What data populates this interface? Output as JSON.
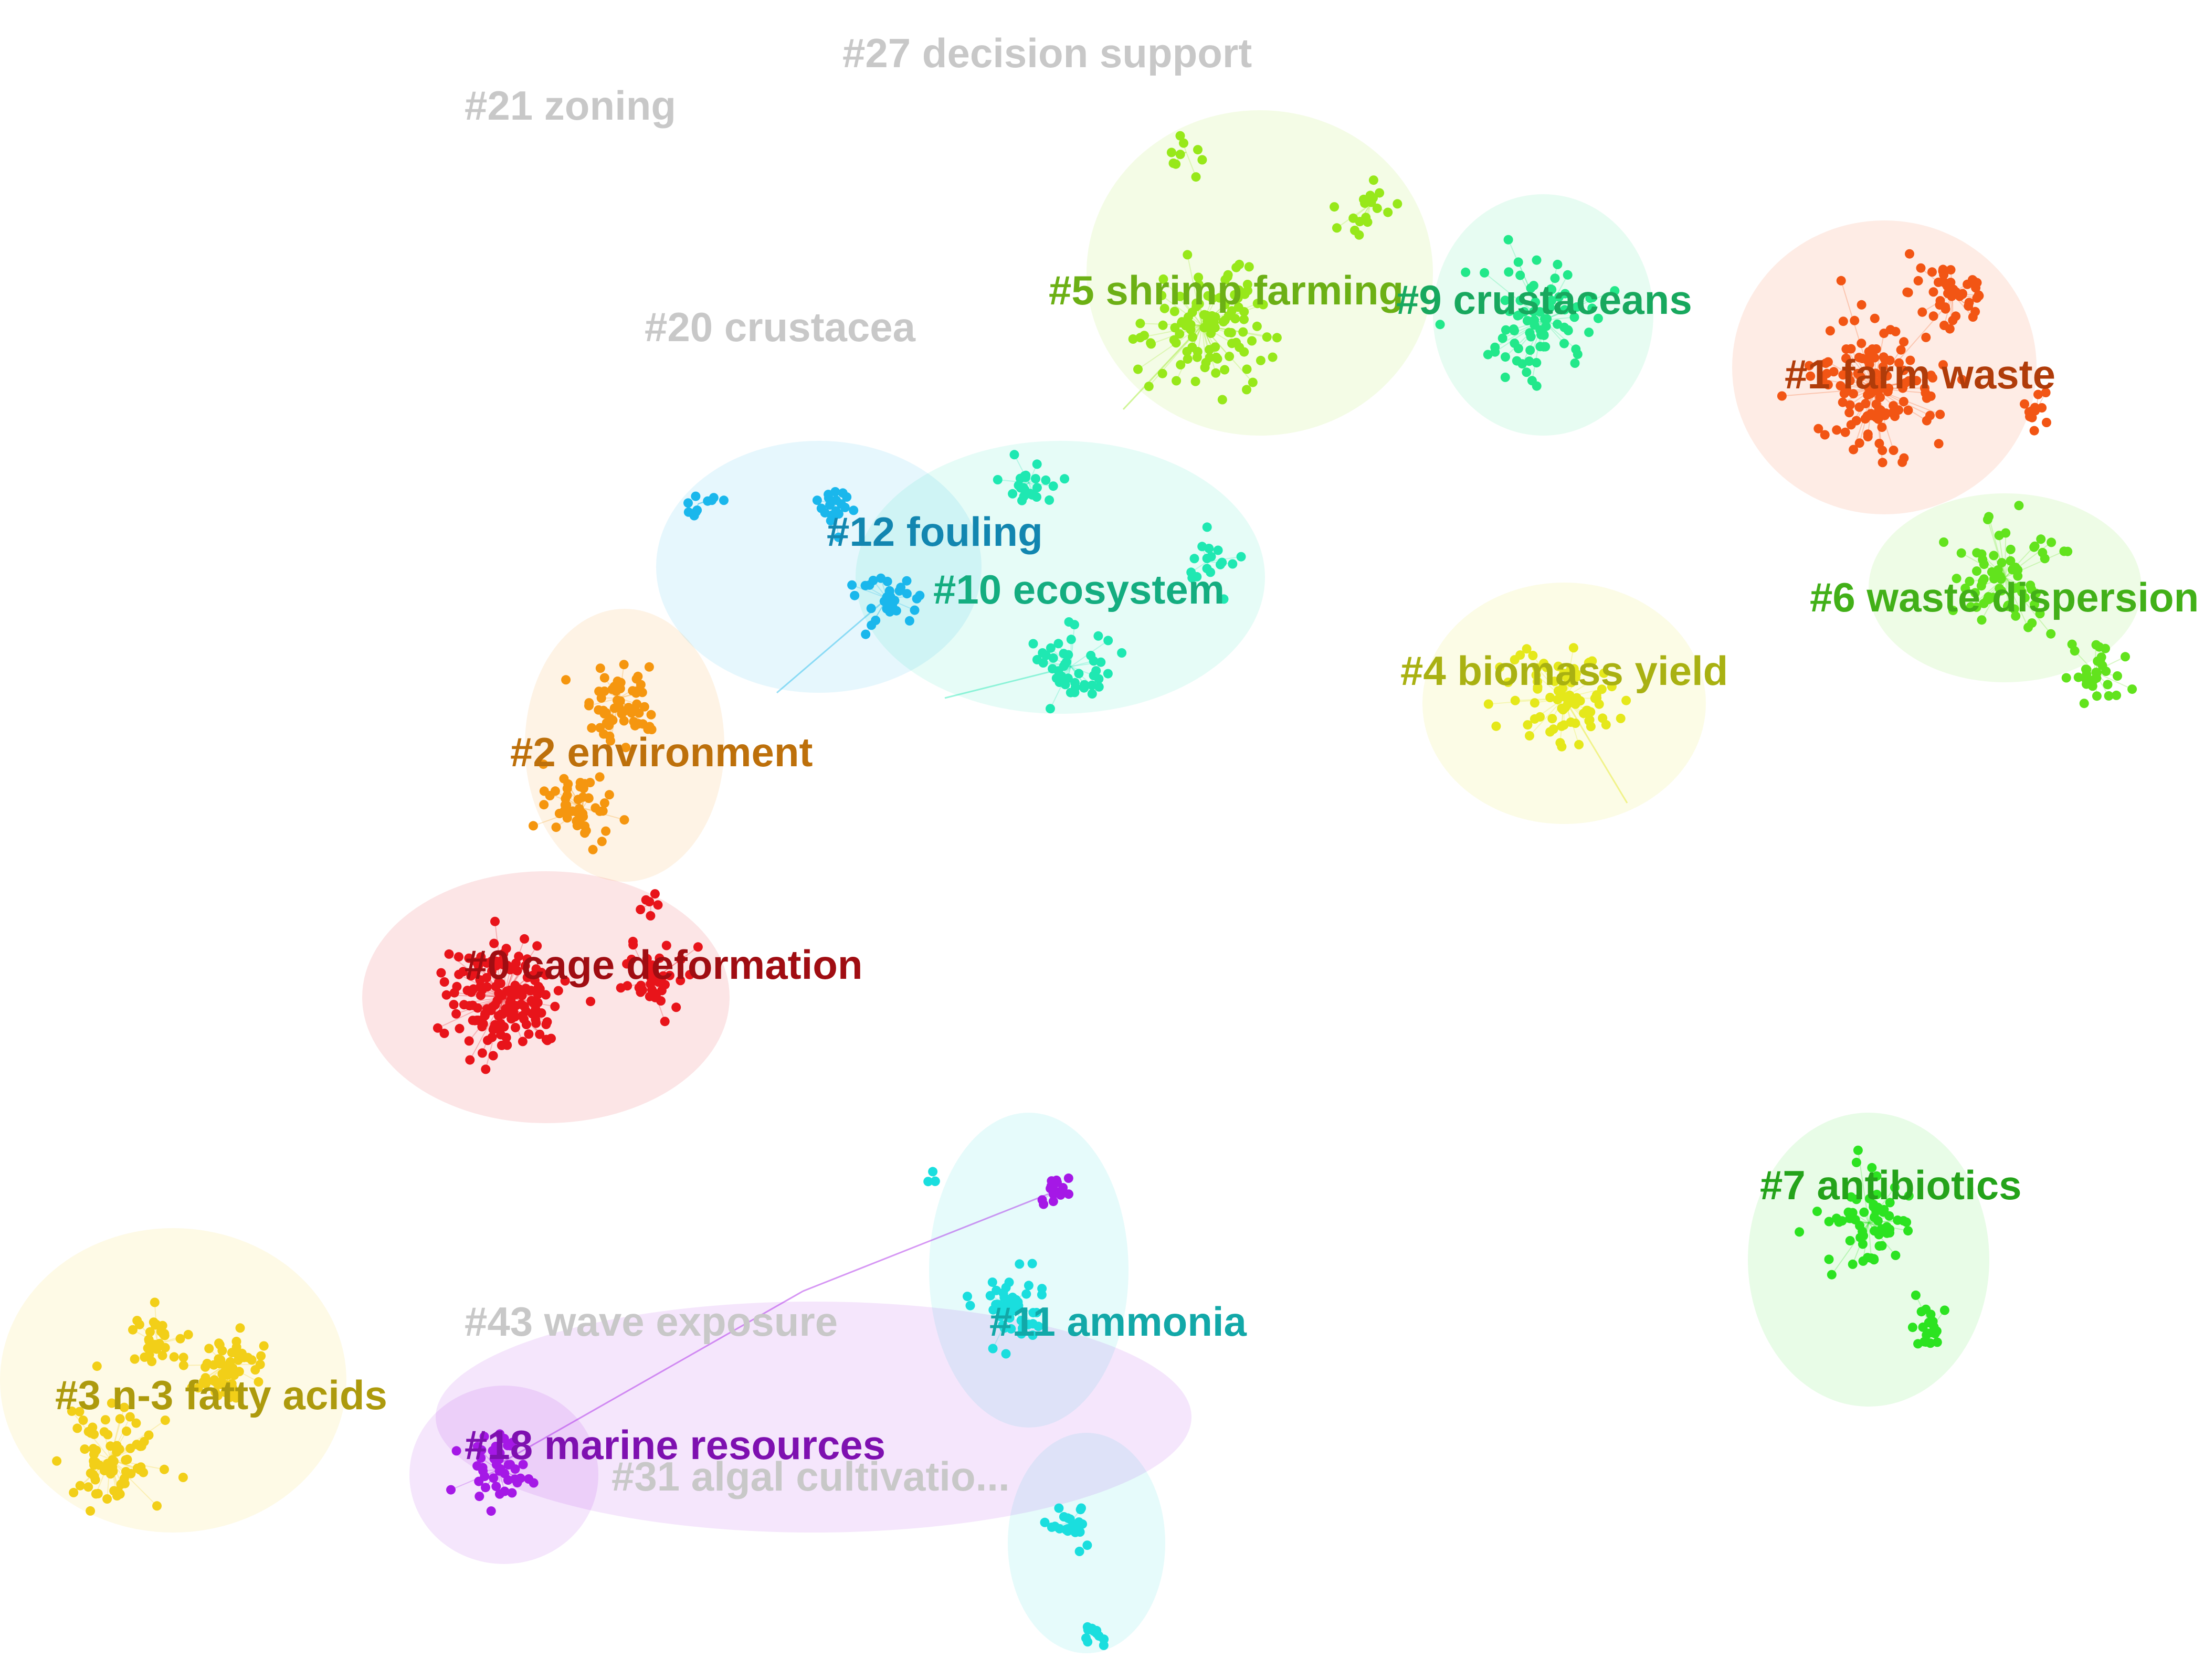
{
  "diagram": {
    "type": "cluster-network-map",
    "clusters": [
      {
        "id": 0,
        "label": "#0 cage deformation",
        "color": "#e8141a",
        "label_color": "#a00d12"
      },
      {
        "id": 1,
        "label": "#1 farm waste",
        "color": "#f25514",
        "label_color": "#b03c0a"
      },
      {
        "id": 2,
        "label": "#2 environment",
        "color": "#f5960f",
        "label_color": "#bd700b"
      },
      {
        "id": 3,
        "label": "#3 n-3 fatty acids",
        "color": "#f2cf18",
        "label_color": "#ad9a0d"
      },
      {
        "id": 4,
        "label": "#4 biomass yield",
        "color": "#e5e81a",
        "label_color": "#a9b112"
      },
      {
        "id": 5,
        "label": "#5 shrimp farming",
        "color": "#97e81a",
        "label_color": "#6cb015"
      },
      {
        "id": 6,
        "label": "#6 waste dispersion",
        "color": "#62e31d",
        "label_color": "#42b018"
      },
      {
        "id": 7,
        "label": "#7 antibiotics",
        "color": "#2ce321",
        "label_color": "#24a31a"
      },
      {
        "id": 9,
        "label": "#9 crustaceans",
        "color": "#22e88a",
        "label_color": "#18a85e"
      },
      {
        "id": 10,
        "label": "#10 ecosystem",
        "color": "#1fe8b2",
        "label_color": "#14ad80"
      },
      {
        "id": 11,
        "label": "#11 ammonia",
        "color": "#1adede",
        "label_color": "#12a8a8"
      },
      {
        "id": 12,
        "label": "#12 fouling",
        "color": "#1ab7ec",
        "label_color": "#1286b0"
      },
      {
        "id": 18,
        "label": "#18 marine resources",
        "color": "#a518e6",
        "label_color": "#7e10b0"
      }
    ],
    "faded_labels": [
      "#27 decision support",
      "#21 zoning",
      "#20 crustacea",
      "#43 wave exposure",
      "#31 algal cultivatio..."
    ],
    "faded_color": "#c8c8c8"
  }
}
